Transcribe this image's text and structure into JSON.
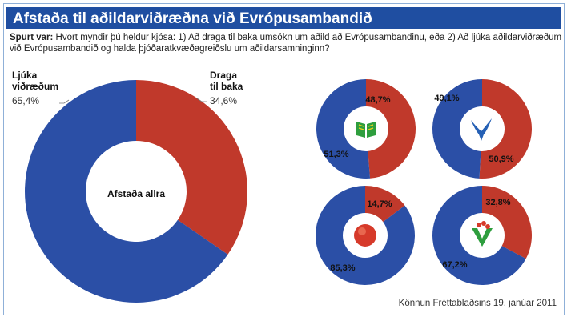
{
  "header": {
    "title": "Afstaða til aðildarviðræðna við Evrópusambandið"
  },
  "question": {
    "label": "Spurt var:",
    "text": "Hvort myndir þú heldur kjósa: 1) Að draga til baka umsókn um aðild að Evrópusambandinu, eða 2) Að ljúka aðildarviðræðum við Evrópusambandið og halda þjóðaratkvæðagreiðslu um aðildarsamninginn?"
  },
  "main_chart": {
    "center_label": "Afstaða allra",
    "left_label_line1": "Ljúka",
    "left_label_line2": "viðræðum",
    "left_value": "65,4%",
    "right_label_line1": "Draga",
    "right_label_line2": "til baka",
    "right_value": "34,6%"
  },
  "small_charts": [
    {
      "icon": "green-book-logo-icon",
      "red_label": "48,7%",
      "blue_label": "51,3%"
    },
    {
      "icon": "blue-falcon-logo-icon",
      "red_label": "50,9%",
      "blue_label": "49,1%"
    },
    {
      "icon": "red-rose-logo-icon",
      "red_label": "14,7%",
      "blue_label": "85,3%"
    },
    {
      "icon": "green-v-flower-logo-icon",
      "red_label": "32,8%",
      "blue_label": "67,2%"
    }
  ],
  "colors": {
    "blue": "#2b4fa6",
    "red": "#c0392b",
    "title_bar": "#1f4ea1"
  },
  "source": "Könnun Fréttablaðsins 19. janúar 2011",
  "chart_data": [
    {
      "type": "pie",
      "title": "Afstaða allra",
      "categories": [
        "Ljúka viðræðum",
        "Draga til baka"
      ],
      "values": [
        65.4,
        34.6
      ]
    },
    {
      "type": "pie",
      "categories": [
        "Ljúka viðræðum",
        "Draga til baka"
      ],
      "values": [
        51.3,
        48.7
      ]
    },
    {
      "type": "pie",
      "categories": [
        "Ljúka viðræðum",
        "Draga til baka"
      ],
      "values": [
        49.1,
        50.9
      ]
    },
    {
      "type": "pie",
      "categories": [
        "Ljúka viðræðum",
        "Draga til baka"
      ],
      "values": [
        85.3,
        14.7
      ]
    },
    {
      "type": "pie",
      "categories": [
        "Ljúka viðræðum",
        "Draga til baka"
      ],
      "values": [
        67.2,
        32.8
      ]
    }
  ]
}
